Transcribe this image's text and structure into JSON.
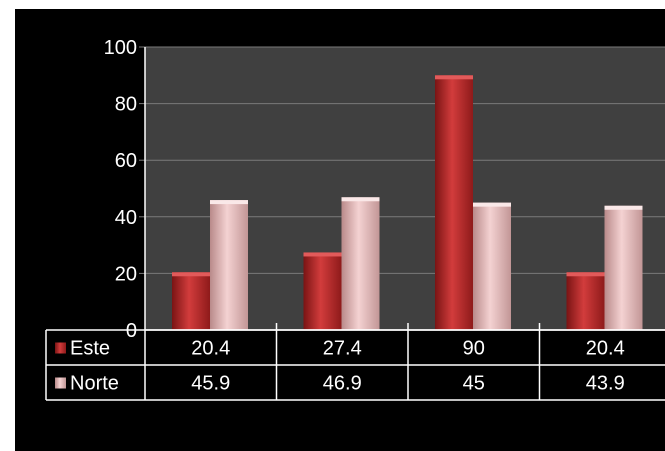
{
  "chart_data": {
    "type": "bar",
    "categories": [
      "",
      "",
      "",
      ""
    ],
    "series": [
      {
        "name": "Este",
        "values": [
          20.4,
          27.4,
          90,
          20.4
        ],
        "color": "#b82828"
      },
      {
        "name": "Norte",
        "values": [
          45.9,
          46.9,
          45,
          43.9
        ],
        "color": "#e8b4b4"
      }
    ],
    "ylim": [
      0,
      100
    ],
    "yticks": [
      0,
      20,
      40,
      60,
      80,
      100
    ],
    "grid": true,
    "legend": "data table",
    "data_table": true,
    "colors": {
      "background": "#000000",
      "plot_area": "#404040",
      "gridline": "#7a7a7a",
      "text": "#ffffff"
    }
  }
}
